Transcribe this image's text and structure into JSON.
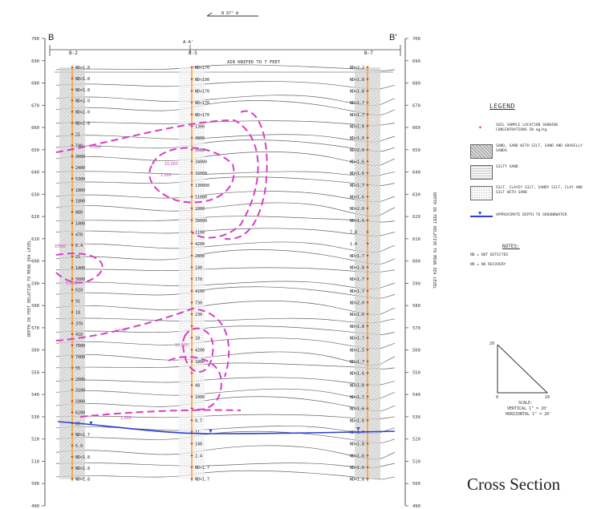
{
  "section": {
    "left_label": "B",
    "right_label": "B'",
    "north_arrow": "N 87° W",
    "cross_line_label": "A-A'",
    "air_note": "AIR KNIFED TO 7 FEET",
    "axis_label": "DEPTH IN FEET RELATIVE TO MEAN SEA LEVEL",
    "elevations": [
      700,
      690,
      680,
      670,
      660,
      650,
      640,
      630,
      620,
      610,
      600,
      590,
      580,
      570,
      560,
      550,
      540,
      530,
      520,
      510,
      500,
      490
    ]
  },
  "borings": [
    {
      "name": "B-2",
      "values": [
        "ND<1.8",
        "ND<1.8",
        "ND<1.8",
        "ND<2.0",
        "ND<2.0",
        "ND<1.8",
        "21",
        "740",
        "3600",
        "2400",
        "5300",
        "1800",
        "1800",
        "880",
        "1400",
        "470",
        "8.4",
        "21",
        "1400",
        "5600",
        "610",
        "91",
        "18",
        "370",
        "410",
        "7000",
        "7000",
        "55",
        "2000",
        "3100",
        "5900",
        "6200",
        "65",
        "ND<1.7",
        "5.9",
        "ND<1.8",
        "ND<1.8",
        "ND<1.8"
      ]
    },
    {
      "name": "B-5",
      "values": [
        "ND<170",
        "ND<190",
        "ND<170",
        "ND<170",
        "ND<170",
        "1300",
        "4800",
        "5500",
        "34000",
        "16000",
        "130000",
        "11000",
        "1000",
        "39000",
        "1100",
        "4200",
        "2800",
        "140",
        "170",
        "4100",
        "730",
        "230",
        "",
        "18",
        "4200",
        "1800",
        "",
        "48",
        "1000",
        "",
        "8.7",
        "11",
        "140",
        "2.4",
        "ND<1.7",
        "ND<1.7"
      ]
    },
    {
      "name": "B-7",
      "values": [
        "ND<2.2",
        "ND<1.8",
        "ND<1.8",
        "ND<1.7",
        "ND<1.7",
        "ND<1.6",
        "ND<1.6",
        "ND<2.0",
        "ND<1.6",
        "ND<1.6",
        "ND<1.7",
        "ND<1.6",
        "ND<2.0",
        "ND<1.5",
        "7.8",
        "1.4",
        "ND<1.7",
        "ND<1.8",
        "ND<1.7",
        "ND<1.7",
        "ND<2.0",
        "ND<1.6",
        "ND<1.8",
        "ND<1.7",
        "ND<1.5",
        "ND<1.7",
        "ND<1.6",
        "ND<1.6",
        "ND<1.7",
        "ND<1.6",
        "ND<1.6",
        "ND<1.7",
        "ND<1.8",
        "ND<1.6",
        "ND<1.6",
        "ND<1.8"
      ]
    }
  ],
  "contours": [
    "1,000",
    "10,000",
    "1,000",
    "1,000",
    "1,000",
    "1,000",
    "10,000",
    "1,000"
  ],
  "legend": {
    "title": "LEGEND",
    "items": [
      "SOIL SAMPLE LOCATION SHOWING CONCENTRATIONS IN mg/kg",
      "SAND, SAND WITH SILT, SAND AND GRAVELLY SANDS",
      "SILTY SAND",
      "SILT, CLAYEY SILT, SANDY SILT, CLAY AND SILT WITH SAND",
      "APPROXIMATE DEPTH TO GROUNDWATER"
    ],
    "notes_title": "NOTES:",
    "notes": [
      "ND = NOT DETECTED",
      "NR = NO RECOVERY"
    ]
  },
  "scale": {
    "label": "SCALE:",
    "vertical": "VERTICAL 1\" = 20'",
    "horizontal": "HORIZONTAL 1\" = 20'",
    "tick_v": "20",
    "tick_o": "0",
    "tick_h": "20"
  },
  "caption": "Cross Section",
  "colors": {
    "contour": "#d63fc4",
    "water": "#2b3ed8",
    "sample": "#e0301e",
    "boring": "#f0a830"
  }
}
